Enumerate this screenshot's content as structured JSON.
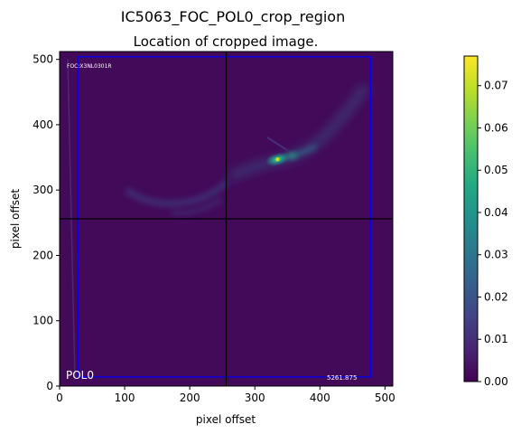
{
  "chart_data": {
    "type": "heatmap",
    "suptitle": "IC5063_FOC_POL0_crop_region",
    "title": "Location of cropped image.",
    "xlabel": "pixel offset",
    "ylabel": "pixel offset",
    "xlim": [
      0,
      512
    ],
    "ylim": [
      0,
      512
    ],
    "xticks": [
      0,
      100,
      200,
      300,
      400,
      500
    ],
    "yticks": [
      0,
      100,
      200,
      300,
      400,
      500
    ],
    "colormap": "viridis",
    "colorbar": {
      "min": 0.0,
      "max": 0.077,
      "ticks": [
        0.0,
        0.01,
        0.02,
        0.03,
        0.04,
        0.05,
        0.06,
        0.07
      ],
      "tick_labels": [
        "0.00",
        "0.01",
        "0.02",
        "0.03",
        "0.04",
        "0.05",
        "0.06",
        "0.07"
      ]
    },
    "crosshair": {
      "x": 256,
      "y": 256,
      "color": "#000000"
    },
    "crop_region": {
      "x0": 28,
      "x1": 478,
      "y0": 14,
      "y1": 504,
      "color": "#0000ff"
    },
    "bright_peak": {
      "x": 335,
      "y": 347
    },
    "annotations": {
      "top_left": "FOC:X3NL0301R",
      "bottom_left": "POL0",
      "bottom_right": "5261.875"
    }
  }
}
